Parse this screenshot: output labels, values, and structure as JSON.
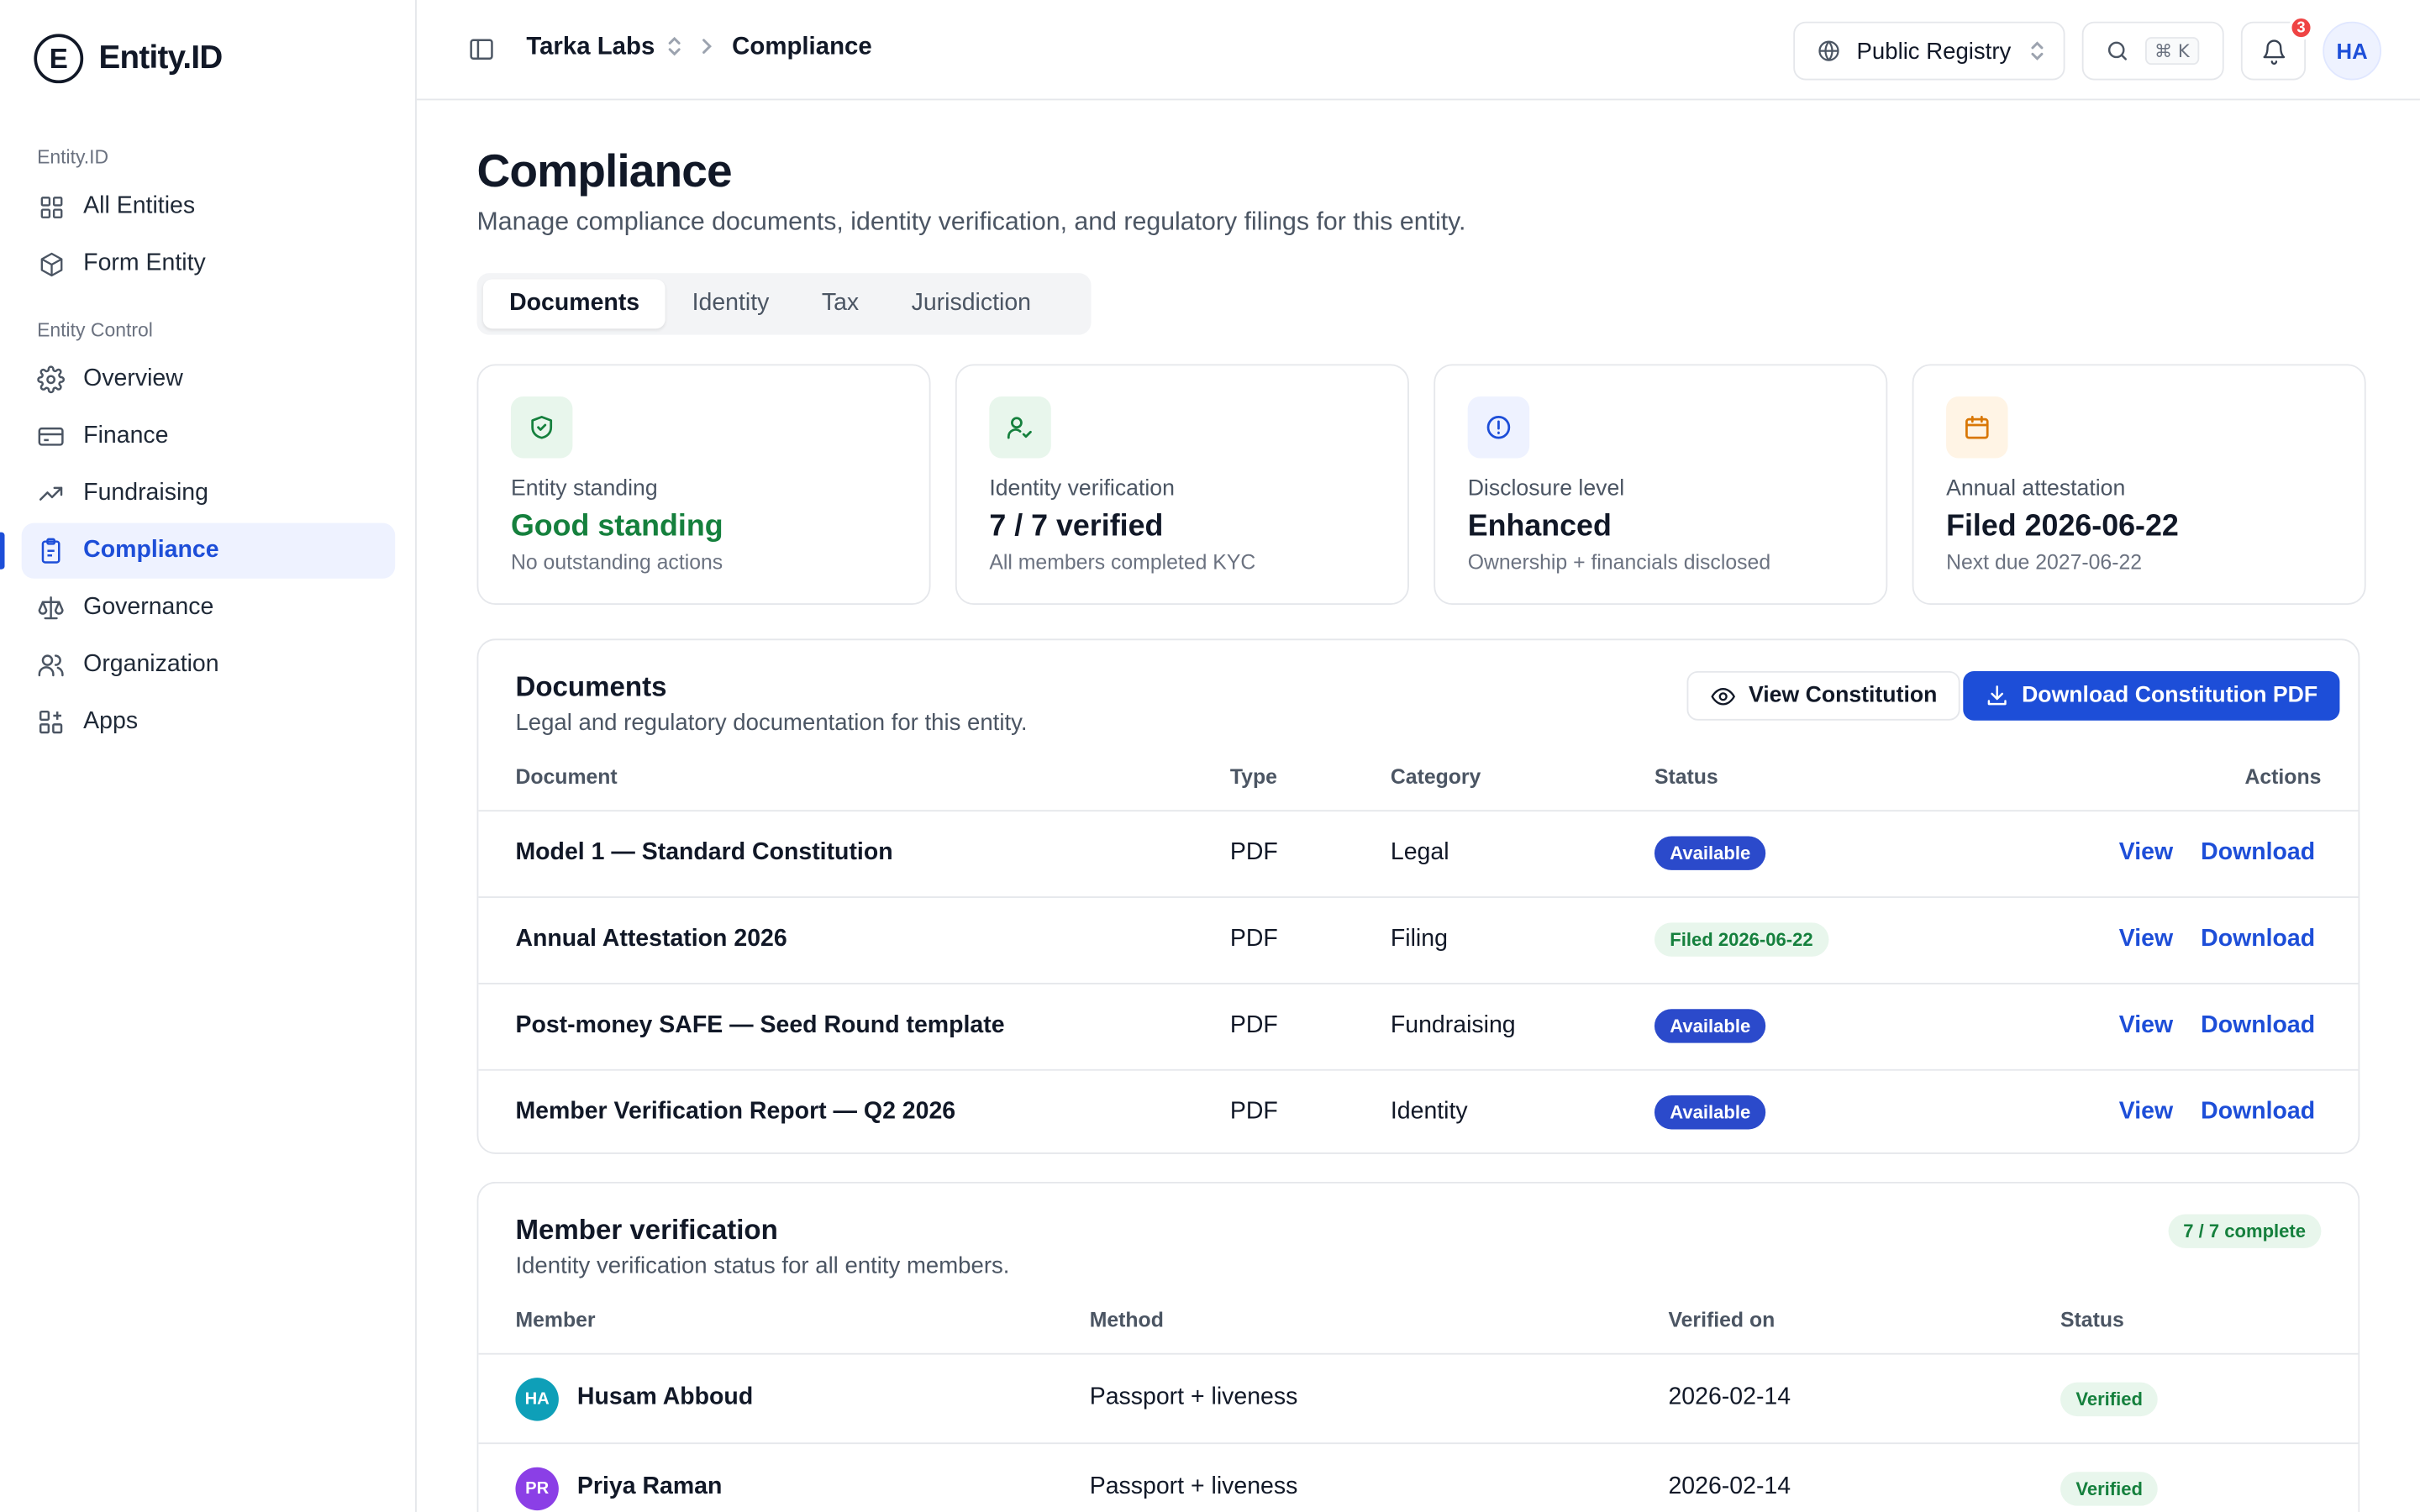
{
  "brand": {
    "logo_letter": "E",
    "name": "Entity.ID"
  },
  "sidebar": {
    "sections": [
      {
        "heading": "Entity.ID",
        "items": [
          {
            "label": "All Entities",
            "icon": "grid-icon"
          },
          {
            "label": "Form Entity",
            "icon": "cube-icon"
          }
        ]
      },
      {
        "heading": "Entity Control",
        "items": [
          {
            "label": "Overview",
            "icon": "gear-icon"
          },
          {
            "label": "Finance",
            "icon": "credit-card-icon"
          },
          {
            "label": "Fundraising",
            "icon": "trending-up-icon"
          },
          {
            "label": "Compliance",
            "icon": "clipboard-icon",
            "active": true
          },
          {
            "label": "Governance",
            "icon": "scale-icon"
          },
          {
            "label": "Organization",
            "icon": "users-icon"
          },
          {
            "label": "Apps",
            "icon": "apps-icon"
          }
        ]
      }
    ]
  },
  "topbar": {
    "org": "Tarka Labs",
    "page": "Compliance",
    "registry": "Public Registry",
    "search_shortcut": "⌘ K",
    "notifications_count": "3",
    "user_initials": "HA"
  },
  "main": {
    "title": "Compliance",
    "description": "Manage compliance documents, identity verification, and regulatory filings for this entity.",
    "tabs": [
      {
        "label": "Documents",
        "active": true
      },
      {
        "label": "Identity"
      },
      {
        "label": "Tax"
      },
      {
        "label": "Jurisdiction"
      }
    ]
  },
  "cards": [
    {
      "label": "Entity standing",
      "value": "Good standing",
      "sub": "No outstanding actions",
      "icon": "shield-check-icon",
      "icon_bg": "#e8f6ec",
      "icon_color": "#15803d",
      "value_color": "#15803d"
    },
    {
      "label": "Identity verification",
      "value": "7 / 7 verified",
      "sub": "All members completed KYC",
      "icon": "user-check-icon",
      "icon_bg": "#e8f6ec",
      "icon_color": "#15803d",
      "value_color": "#111827"
    },
    {
      "label": "Disclosure level",
      "value": "Enhanced",
      "sub": "Ownership + financials disclosed",
      "icon": "info-circle-icon",
      "icon_bg": "#eef2ff",
      "icon_color": "#1d4ed8",
      "value_color": "#111827"
    },
    {
      "label": "Annual attestation",
      "value": "Filed 2026-06-22",
      "sub": "Next due 2027-06-22",
      "icon": "calendar-icon",
      "icon_bg": "#fff4e5",
      "icon_color": "#d97706",
      "value_color": "#111827"
    }
  ],
  "documents": {
    "title": "Documents",
    "description": "Legal and regulatory documentation for this entity.",
    "view_button": "View Constitution",
    "download_button": "Download Constitution PDF",
    "columns": [
      "Document",
      "Type",
      "Category",
      "Status",
      "Actions"
    ],
    "rows": [
      {
        "name": "Model 1 — Standard Constitution",
        "type": "PDF",
        "category": "Legal",
        "status": "Available",
        "status_style": "blue",
        "view": "View",
        "download": "Download"
      },
      {
        "name": "Annual Attestation 2026",
        "type": "PDF",
        "category": "Filing",
        "status": "Filed 2026-06-22",
        "status_style": "green",
        "view": "View",
        "download": "Download"
      },
      {
        "name": "Post-money SAFE — Seed Round template",
        "type": "PDF",
        "category": "Fundraising",
        "status": "Available",
        "status_style": "blue",
        "view": "View",
        "download": "Download"
      },
      {
        "name": "Member Verification Report — Q2 2026",
        "type": "PDF",
        "category": "Identity",
        "status": "Available",
        "status_style": "blue",
        "view": "View",
        "download": "Download"
      }
    ]
  },
  "members": {
    "title": "Member verification",
    "description": "Identity verification status for all entity members.",
    "badge": "7 / 7 complete",
    "columns": [
      "Member",
      "Method",
      "Verified on",
      "Status"
    ],
    "rows": [
      {
        "initials": "HA",
        "name": "Husam Abboud",
        "method": "Passport + liveness",
        "verified_on": "2026-02-14",
        "status": "Verified",
        "avatar_color": "#0e9fb8"
      },
      {
        "initials": "PR",
        "name": "Priya Raman",
        "method": "Passport + liveness",
        "verified_on": "2026-02-14",
        "status": "Verified",
        "avatar_color": "#8b3fe6"
      }
    ]
  },
  "colors": {
    "accent": "#1d4ed8",
    "success": "#15803d",
    "border": "#e5e7eb"
  }
}
